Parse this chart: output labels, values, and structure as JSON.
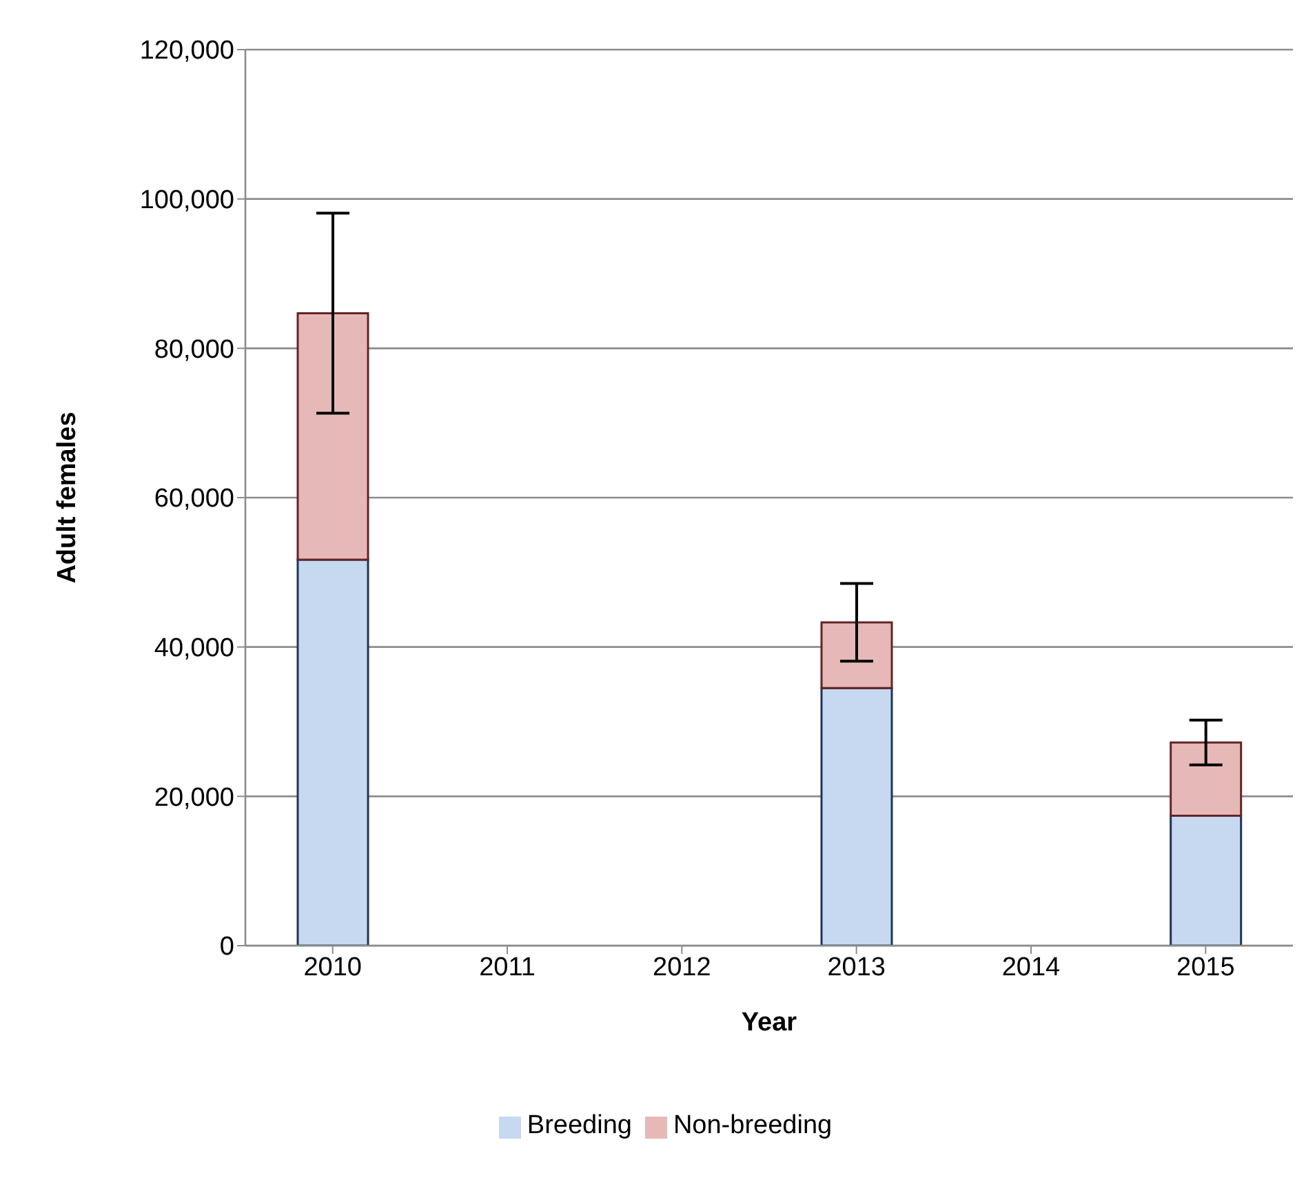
{
  "chart_data": {
    "type": "bar",
    "stacked": true,
    "xlabel": "Year",
    "ylabel": "Adult females",
    "categories": [
      "2010",
      "2011",
      "2012",
      "2013",
      "2014",
      "2015"
    ],
    "series": [
      {
        "name": "Breeding",
        "color": "#c6d9f0",
        "values": [
          51700,
          null,
          null,
          34500,
          null,
          17400
        ]
      },
      {
        "name": "Non-breeding",
        "color": "#e6b9b8",
        "values": [
          33000,
          null,
          null,
          8800,
          null,
          9800
        ],
        "errors": [
          13400,
          null,
          null,
          5200,
          null,
          3000
        ]
      }
    ],
    "ylim": [
      0,
      120000
    ],
    "yticks": [
      {
        "value": 0,
        "label": "0"
      },
      {
        "value": 20000,
        "label": "20,000"
      },
      {
        "value": 40000,
        "label": "40,000"
      },
      {
        "value": 60000,
        "label": "60,000"
      },
      {
        "value": 80000,
        "label": "80,000"
      },
      {
        "value": 100000,
        "label": "100,000"
      },
      {
        "value": 120000,
        "label": "120,000"
      }
    ],
    "grid": "y",
    "legend": "bottom"
  }
}
